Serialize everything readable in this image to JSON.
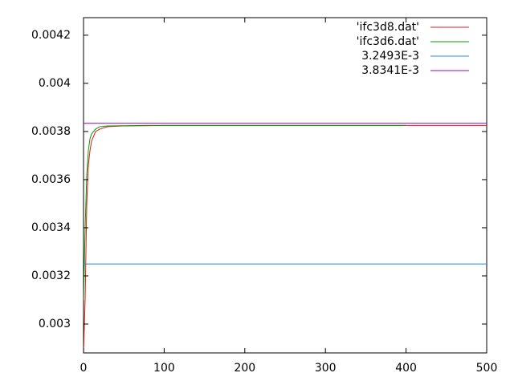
{
  "chart_data": {
    "type": "line",
    "xlim": [
      0,
      500
    ],
    "ylim": [
      0.00288,
      0.004273
    ],
    "xticks": [
      0,
      100,
      200,
      300,
      400,
      500
    ],
    "yticks": [
      0.003,
      0.0032,
      0.0034,
      0.0036,
      0.0038,
      0.004,
      0.0042
    ],
    "legend": "top-right",
    "series": [
      {
        "name": "'ifc3d8.dat'",
        "color": "#e41a1c",
        "x": [
          0,
          2,
          4,
          6,
          8,
          10,
          15,
          20,
          30,
          50,
          75,
          100,
          200,
          300,
          400,
          500
        ],
        "values": [
          0.00288,
          0.0031,
          0.0035,
          0.00366,
          0.00372,
          0.00376,
          0.0038,
          0.00381,
          0.00382,
          0.003823,
          0.003824,
          0.003825,
          0.003825,
          0.003825,
          0.003825,
          0.003825
        ]
      },
      {
        "name": "'ifc3d6.dat'",
        "color": "#00a000",
        "x": [
          0,
          2,
          4,
          6,
          8,
          10,
          15,
          20,
          30,
          50,
          75,
          100,
          200,
          300,
          400
        ],
        "values": [
          0.0031,
          0.0034,
          0.00362,
          0.00372,
          0.00377,
          0.00379,
          0.00381,
          0.00382,
          0.003823,
          0.003824,
          0.003825,
          0.003825,
          0.003825,
          0.003825,
          0.003825
        ]
      },
      {
        "name": "3.2493E-3",
        "color": "#2a8bd4",
        "x": [
          0,
          500
        ],
        "values": [
          0.0032493,
          0.0032493
        ]
      },
      {
        "name": "3.8341E-3",
        "color": "#9400d3",
        "x": [
          0,
          500
        ],
        "values": [
          0.0038341,
          0.0038341
        ]
      }
    ]
  }
}
